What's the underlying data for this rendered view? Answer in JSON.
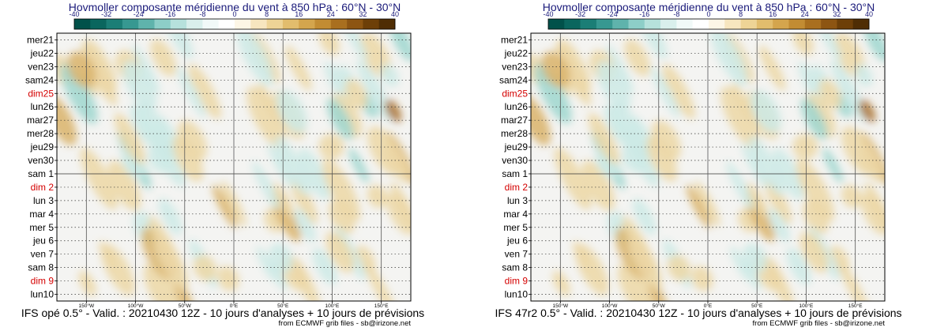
{
  "chart_data": [
    {
      "type": "heatmap",
      "title": "Hovmoller composante méridienne du vent à 850 hPa : 60°N - 30°N",
      "colorbar": {
        "ticks": [
          "-40",
          "-32",
          "-24",
          "-16",
          "-8",
          "0",
          "8",
          "16",
          "24",
          "32",
          "40"
        ],
        "range": [
          -40,
          40
        ],
        "colors": [
          "#01514a",
          "#0a665e",
          "#1b7e76",
          "#379891",
          "#5fb3ac",
          "#8dcec8",
          "#b6e1dc",
          "#d9efec",
          "#f1f9f8",
          "#ffffff",
          "#fdf6e6",
          "#f7e6bf",
          "#eed496",
          "#e2bd6d",
          "#d4a54d",
          "#c28c33",
          "#a96f1f",
          "#8d5512",
          "#6d3f08",
          "#4f2d04"
        ]
      },
      "y_labels": [
        {
          "t": "mer21",
          "sunday": false
        },
        {
          "t": "jeu22",
          "sunday": false
        },
        {
          "t": "ven23",
          "sunday": false
        },
        {
          "t": "sam24",
          "sunday": false
        },
        {
          "t": "dim25",
          "sunday": true
        },
        {
          "t": "lun26",
          "sunday": false
        },
        {
          "t": "mar27",
          "sunday": false
        },
        {
          "t": "mer28",
          "sunday": false
        },
        {
          "t": "jeu29",
          "sunday": false
        },
        {
          "t": "ven30",
          "sunday": false
        },
        {
          "t": "sam 1",
          "sunday": false
        },
        {
          "t": "dim 2",
          "sunday": true
        },
        {
          "t": "lun 3",
          "sunday": false
        },
        {
          "t": "mar 4",
          "sunday": false
        },
        {
          "t": "mer 5",
          "sunday": false
        },
        {
          "t": "jeu 6",
          "sunday": false
        },
        {
          "t": "ven 7",
          "sunday": false
        },
        {
          "t": "sam 8",
          "sunday": false
        },
        {
          "t": "dim 9",
          "sunday": true
        },
        {
          "t": "lun10",
          "sunday": false
        }
      ],
      "x_ticks": [
        {
          "label": "150°W",
          "lon": -150
        },
        {
          "label": "100°W",
          "lon": -100
        },
        {
          "label": "50°W",
          "lon": -50
        },
        {
          "label": "0°E",
          "lon": 0
        },
        {
          "label": "50°E",
          "lon": 50
        },
        {
          "label": "100°E",
          "lon": 100
        },
        {
          "label": "150°E",
          "lon": 150
        }
      ],
      "x_range": [
        -180,
        180
      ],
      "analysis_forecast_split_label": "sam 1",
      "footer": "IFS opé 0.5° - Valid. : 20210430 12Z - 10 jours d'analyses + 10 jours de prévisions",
      "credit": "from ECMWF grib files - sb@irizone.net"
    },
    {
      "type": "heatmap",
      "title": "Hovmoller composante méridienne du vent à 850 hPa : 60°N - 30°N",
      "colorbar": {
        "ticks": [
          "-40",
          "-32",
          "-24",
          "-16",
          "-8",
          "0",
          "8",
          "16",
          "24",
          "32",
          "40"
        ],
        "range": [
          -40,
          40
        ],
        "colors": [
          "#01514a",
          "#0a665e",
          "#1b7e76",
          "#379891",
          "#5fb3ac",
          "#8dcec8",
          "#b6e1dc",
          "#d9efec",
          "#f1f9f8",
          "#ffffff",
          "#fdf6e6",
          "#f7e6bf",
          "#eed496",
          "#e2bd6d",
          "#d4a54d",
          "#c28c33",
          "#a96f1f",
          "#8d5512",
          "#6d3f08",
          "#4f2d04"
        ]
      },
      "y_labels": [
        {
          "t": "mer21",
          "sunday": false
        },
        {
          "t": "jeu22",
          "sunday": false
        },
        {
          "t": "ven23",
          "sunday": false
        },
        {
          "t": "sam24",
          "sunday": false
        },
        {
          "t": "dim25",
          "sunday": true
        },
        {
          "t": "lun26",
          "sunday": false
        },
        {
          "t": "mar27",
          "sunday": false
        },
        {
          "t": "mer28",
          "sunday": false
        },
        {
          "t": "jeu29",
          "sunday": false
        },
        {
          "t": "ven30",
          "sunday": false
        },
        {
          "t": "sam 1",
          "sunday": false
        },
        {
          "t": "dim 2",
          "sunday": true
        },
        {
          "t": "lun 3",
          "sunday": false
        },
        {
          "t": "mar 4",
          "sunday": false
        },
        {
          "t": "mer 5",
          "sunday": false
        },
        {
          "t": "jeu 6",
          "sunday": false
        },
        {
          "t": "ven 7",
          "sunday": false
        },
        {
          "t": "sam 8",
          "sunday": false
        },
        {
          "t": "dim 9",
          "sunday": true
        },
        {
          "t": "lun10",
          "sunday": false
        }
      ],
      "x_ticks": [
        {
          "label": "150°W",
          "lon": -150
        },
        {
          "label": "100°W",
          "lon": -100
        },
        {
          "label": "50°W",
          "lon": -50
        },
        {
          "label": "0°E",
          "lon": 0
        },
        {
          "label": "50°E",
          "lon": 50
        },
        {
          "label": "100°E",
          "lon": 100
        },
        {
          "label": "150°E",
          "lon": 150
        }
      ],
      "x_range": [
        -180,
        180
      ],
      "analysis_forecast_split_label": "sam 1",
      "footer": "IFS 47r2 0.5° - Valid. : 20210430 12Z - 10 jours d'analyses + 10 jours de prévisions",
      "credit": "from ECMWF grib files - sb@irizone.net"
    }
  ]
}
